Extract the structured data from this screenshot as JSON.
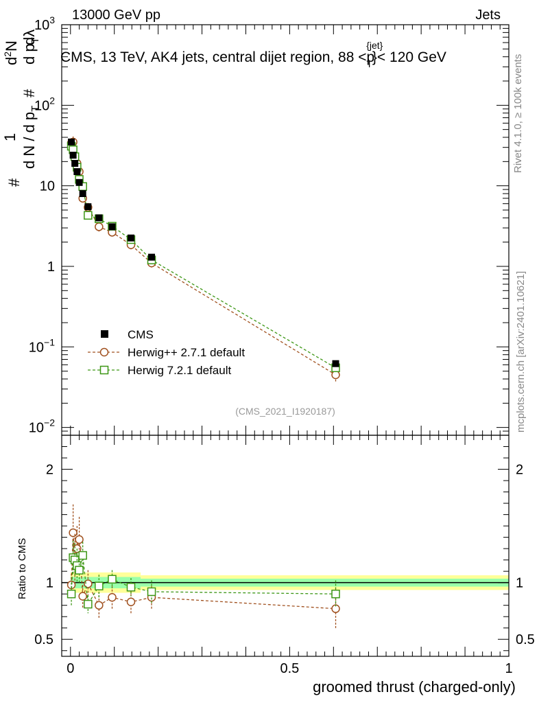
{
  "header": {
    "left": "13000 GeV pp",
    "right": "Jets"
  },
  "side_labels": {
    "rivet": "Rivet 4.1.0, ≥ 100k events",
    "mcplots": "mcplots.cern.ch [arXiv:2401.10621]"
  },
  "chart_data": {
    "type": "scatter",
    "title": "CMS, 13 TeV, AK4 jets, central dijet region, 88 <p_T^{jet}< 120 GeV",
    "title_parts": {
      "main": "CMS, 13 TeV, AK4 jets, central dijet region, 88 <p",
      "sup": "{jet}",
      "sub": "T",
      "tail": "}< 120 GeV"
    },
    "watermark": "(CMS_2021_I1920187)",
    "xlabel": "groomed thrust (charged-only)",
    "ylabel": {
      "hash1": "#",
      "one": "1",
      "dN": "d N / d p",
      "dN_sub": "T",
      "hash2": "#",
      "d2N": "d",
      "d2N_sup": "2",
      "d2N_tail": "N",
      "dpt": "d p",
      "dpt_sub": "T",
      "dlambda": "dλ"
    },
    "ratio_ylabel": "Ratio to CMS",
    "xlim": [
      -0.02,
      1.0
    ],
    "ylim_log": [
      0.008,
      1000
    ],
    "ratio_ylim": [
      0.35,
      2.3
    ],
    "x_ticks": [
      {
        "value": 0,
        "label": "0"
      },
      {
        "value": 0.5,
        "label": "0.5"
      },
      {
        "value": 1,
        "label": "1"
      }
    ],
    "y_ticks": [
      {
        "value": 1000,
        "base": "10",
        "exp": "3"
      },
      {
        "value": 100,
        "base": "10",
        "exp": "2"
      },
      {
        "value": 10,
        "base": "10",
        "exp": ""
      },
      {
        "value": 1,
        "base": "1",
        "exp": ""
      },
      {
        "value": 0.1,
        "base": "10",
        "exp": "−1"
      },
      {
        "value": 0.01,
        "base": "10",
        "exp": "−2"
      }
    ],
    "ratio_ticks": [
      {
        "value": 2,
        "label": "2"
      },
      {
        "value": 1,
        "label": "1"
      },
      {
        "value": 0.5,
        "label": "0.5"
      }
    ],
    "legend": [
      {
        "name": "CMS",
        "marker": "square-filled",
        "color": "#000000"
      },
      {
        "name": "Herwig++ 2.7.1 default",
        "marker": "circle-open",
        "color": "#a0501e"
      },
      {
        "name": "Herwig 7.2.1 default",
        "marker": "square-open",
        "color": "#3c9614"
      }
    ],
    "bands": [
      {
        "x0": 0.0,
        "x1": 0.16,
        "stat": 0.05,
        "total": 0.09
      },
      {
        "x0": 0.16,
        "x1": 1.0,
        "stat": 0.035,
        "total": 0.065
      }
    ],
    "series": [
      {
        "name": "CMS",
        "x": [
          0.002,
          0.006,
          0.01,
          0.015,
          0.02,
          0.028,
          0.04,
          0.065,
          0.095,
          0.138,
          0.185,
          0.605
        ],
        "y": [
          35,
          24,
          19,
          15,
          11,
          8,
          5.5,
          4.0,
          3.1,
          2.25,
          1.3,
          0.062
        ],
        "yerr": [
          3,
          2,
          1.5,
          1.2,
          0.8,
          0.5,
          0.3,
          0.2,
          0.15,
          0.12,
          0.08,
          0.004
        ]
      },
      {
        "name": "Herwig++ 2.7.1 default",
        "x": [
          0.002,
          0.006,
          0.01,
          0.015,
          0.02,
          0.028,
          0.04,
          0.065,
          0.095,
          0.138,
          0.185,
          0.605
        ],
        "y": [
          34,
          35,
          23,
          19,
          15,
          7,
          5.4,
          3.1,
          2.65,
          1.85,
          1.1,
          0.045
        ],
        "yerr": [
          5,
          6,
          4,
          3,
          2,
          0.8,
          0.6,
          0.4,
          0.3,
          0.25,
          0.15,
          0.008
        ],
        "ratio": [
          0.98,
          1.44,
          1.21,
          1.3,
          1.38,
          0.88,
          0.99,
          0.8,
          0.87,
          0.83,
          0.87,
          0.77
        ],
        "ratio_err": [
          0.1,
          0.25,
          0.22,
          0.2,
          0.2,
          0.1,
          0.12,
          0.12,
          0.1,
          0.1,
          0.1,
          0.18
        ]
      },
      {
        "name": "Herwig 7.2.1 default",
        "x": [
          0.002,
          0.006,
          0.01,
          0.015,
          0.02,
          0.028,
          0.04,
          0.065,
          0.095,
          0.138,
          0.185,
          0.605
        ],
        "y": [
          31,
          28,
          23,
          17,
          12,
          9.8,
          4.3,
          3.9,
          3.15,
          2.15,
          1.2,
          0.055
        ],
        "yerr": [
          4,
          3,
          3,
          2,
          1.5,
          1.0,
          0.4,
          0.3,
          0.25,
          0.2,
          0.12,
          0.006
        ],
        "ratio": [
          0.9,
          1.22,
          1.2,
          1.15,
          1.11,
          1.24,
          0.81,
          0.97,
          1.03,
          0.96,
          0.92,
          0.9
        ],
        "ratio_err": [
          0.1,
          0.15,
          0.15,
          0.15,
          0.12,
          0.12,
          0.08,
          0.1,
          0.08,
          0.08,
          0.1,
          0.12
        ]
      }
    ]
  },
  "colors": {
    "cms": "#000000",
    "herwigpp": "#a0501e",
    "herwig7": "#3c9614",
    "band_outer": "#ffff99",
    "band_inner": "#99ffaa",
    "side_text": "#888888",
    "watermark": "#999999"
  }
}
